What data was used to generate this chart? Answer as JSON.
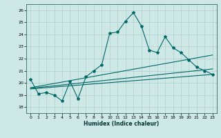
{
  "xlabel": "Humidex (Indice chaleur)",
  "xlim": [
    -0.5,
    23.5
  ],
  "ylim": [
    17.5,
    26.5
  ],
  "xticks": [
    0,
    1,
    2,
    3,
    4,
    5,
    6,
    7,
    8,
    9,
    10,
    11,
    12,
    13,
    14,
    15,
    16,
    17,
    18,
    19,
    20,
    21,
    22,
    23
  ],
  "yticks": [
    18,
    19,
    20,
    21,
    22,
    23,
    24,
    25,
    26
  ],
  "background_color": "#cde8e5",
  "grid_color": "#b0d0cd",
  "line_color": "#006666",
  "series1_x": [
    0,
    1,
    2,
    3,
    4,
    5,
    6,
    7,
    8,
    9,
    10,
    11,
    12,
    13,
    14,
    15,
    16,
    17,
    18,
    19,
    20,
    21,
    22,
    23
  ],
  "series1_y": [
    20.3,
    19.1,
    19.2,
    19.0,
    18.5,
    20.1,
    18.7,
    20.5,
    21.0,
    21.5,
    24.1,
    24.2,
    25.1,
    25.8,
    24.7,
    22.7,
    22.5,
    23.8,
    22.9,
    22.5,
    21.9,
    21.3,
    21.0,
    20.7
  ],
  "series2_x": [
    0,
    23
  ],
  "series2_y": [
    19.5,
    20.7
  ],
  "series3_x": [
    0,
    23
  ],
  "series3_y": [
    19.6,
    22.3
  ],
  "series4_x": [
    0,
    23
  ],
  "series4_y": [
    19.55,
    21.15
  ]
}
